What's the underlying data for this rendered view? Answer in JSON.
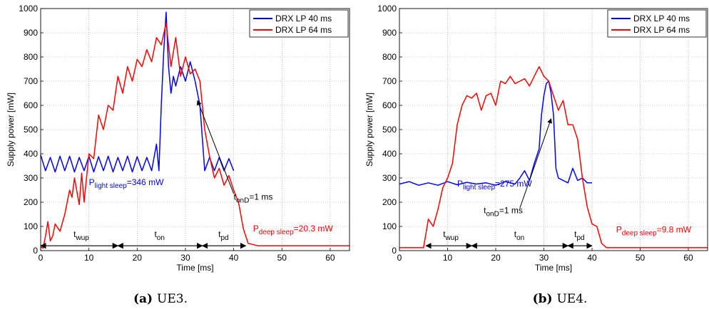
{
  "chart_data": [
    {
      "type": "line",
      "caption": {
        "letter": "(a)",
        "text": "UE3."
      },
      "xlabel": "Time [ms]",
      "ylabel": "Supply power [mW]",
      "xlim": [
        0,
        64
      ],
      "ylim": [
        0,
        1000
      ],
      "xticks": [
        0,
        10,
        20,
        30,
        40,
        50,
        60
      ],
      "yticks": [
        0,
        100,
        200,
        300,
        400,
        500,
        600,
        700,
        800,
        900,
        1000
      ],
      "grid": true,
      "legend_position": "top-right",
      "series": [
        {
          "name": "DRX LP 40 ms",
          "color": "#0000ff",
          "points": [
            [
              0,
              395
            ],
            [
              1,
              330
            ],
            [
              2,
              385
            ],
            [
              3,
              325
            ],
            [
              4,
              390
            ],
            [
              5,
              330
            ],
            [
              6,
              390
            ],
            [
              7,
              325
            ],
            [
              8,
              385
            ],
            [
              9,
              330
            ],
            [
              10,
              390
            ],
            [
              11,
              325
            ],
            [
              12,
              388
            ],
            [
              13,
              330
            ],
            [
              14,
              390
            ],
            [
              15,
              325
            ],
            [
              16,
              385
            ],
            [
              17,
              330
            ],
            [
              18,
              390
            ],
            [
              19,
              325
            ],
            [
              20,
              388
            ],
            [
              21,
              330
            ],
            [
              22,
              385
            ],
            [
              23,
              330
            ],
            [
              24,
              440
            ],
            [
              24.5,
              330
            ],
            [
              25,
              600
            ],
            [
              25.5,
              820
            ],
            [
              26,
              985
            ],
            [
              26.5,
              760
            ],
            [
              27,
              650
            ],
            [
              27.5,
              720
            ],
            [
              28,
              680
            ],
            [
              29,
              760
            ],
            [
              30,
              700
            ],
            [
              31,
              780
            ],
            [
              32,
              700
            ],
            [
              33,
              600
            ],
            [
              34,
              330
            ],
            [
              35,
              385
            ],
            [
              36,
              330
            ],
            [
              37,
              385
            ],
            [
              38,
              330
            ],
            [
              39,
              380
            ],
            [
              40,
              330
            ]
          ]
        },
        {
          "name": "DRX LP 64 ms",
          "color": "#ff0000",
          "points": [
            [
              0,
              15
            ],
            [
              0.5,
              10
            ],
            [
              1,
              60
            ],
            [
              1.5,
              120
            ],
            [
              2,
              40
            ],
            [
              2.5,
              60
            ],
            [
              3,
              110
            ],
            [
              4,
              80
            ],
            [
              5,
              150
            ],
            [
              6,
              250
            ],
            [
              6.5,
              220
            ],
            [
              7,
              300
            ],
            [
              8,
              190
            ],
            [
              8.5,
              320
            ],
            [
              9,
              200
            ],
            [
              10,
              400
            ],
            [
              11,
              380
            ],
            [
              12,
              560
            ],
            [
              13,
              500
            ],
            [
              14,
              600
            ],
            [
              15,
              580
            ],
            [
              16,
              720
            ],
            [
              17,
              650
            ],
            [
              18,
              760
            ],
            [
              19,
              700
            ],
            [
              20,
              790
            ],
            [
              21,
              760
            ],
            [
              22,
              830
            ],
            [
              23,
              780
            ],
            [
              24,
              880
            ],
            [
              25,
              850
            ],
            [
              26,
              940
            ],
            [
              27,
              760
            ],
            [
              28,
              880
            ],
            [
              29,
              720
            ],
            [
              30,
              800
            ],
            [
              31,
              730
            ],
            [
              32,
              750
            ],
            [
              33,
              700
            ],
            [
              34,
              500
            ],
            [
              35,
              390
            ],
            [
              36,
              300
            ],
            [
              37,
              340
            ],
            [
              38,
              270
            ],
            [
              39,
              310
            ],
            [
              40,
              250
            ],
            [
              41,
              200
            ],
            [
              42,
              90
            ],
            [
              43,
              30
            ],
            [
              45,
              20
            ],
            [
              50,
              20
            ],
            [
              55,
              20
            ],
            [
              60,
              20
            ],
            [
              64,
              20
            ]
          ]
        }
      ],
      "annotations": {
        "light_sleep": {
          "base": "P",
          "sub": "light sleep",
          "value": "=346 mW"
        },
        "deep_sleep": {
          "base": "P",
          "sub": "deep sleep",
          "value": "=20.3 mW"
        },
        "t_onD": {
          "base": "t",
          "sub": "onD",
          "value": "=1 ms"
        },
        "t_wup": {
          "base": "t",
          "sub": "wup"
        },
        "t_on": {
          "base": "t",
          "sub": "on"
        },
        "t_pd": {
          "base": "t",
          "sub": "pd"
        }
      }
    },
    {
      "type": "line",
      "caption": {
        "letter": "(b)",
        "text": "UE4."
      },
      "xlabel": "Time [ms]",
      "ylabel": "Supply power [mW]",
      "xlim": [
        0,
        64
      ],
      "ylim": [
        0,
        1000
      ],
      "xticks": [
        0,
        10,
        20,
        30,
        40,
        50,
        60
      ],
      "yticks": [
        0,
        100,
        200,
        300,
        400,
        500,
        600,
        700,
        800,
        900,
        1000
      ],
      "grid": true,
      "legend_position": "top-right",
      "series": [
        {
          "name": "DRX LP 40 ms",
          "color": "#0000ff",
          "points": [
            [
              0,
              275
            ],
            [
              2,
              285
            ],
            [
              4,
              270
            ],
            [
              6,
              280
            ],
            [
              8,
              270
            ],
            [
              10,
              285
            ],
            [
              12,
              272
            ],
            [
              14,
              282
            ],
            [
              16,
              275
            ],
            [
              18,
              280
            ],
            [
              20,
              270
            ],
            [
              22,
              285
            ],
            [
              24,
              275
            ],
            [
              25,
              300
            ],
            [
              26,
              330
            ],
            [
              27,
              290
            ],
            [
              28,
              360
            ],
            [
              29,
              420
            ],
            [
              29.5,
              560
            ],
            [
              30,
              640
            ],
            [
              30.5,
              690
            ],
            [
              31,
              700
            ],
            [
              31.5,
              650
            ],
            [
              32,
              560
            ],
            [
              32.5,
              340
            ],
            [
              33,
              300
            ],
            [
              34,
              290
            ],
            [
              35,
              280
            ],
            [
              36,
              340
            ],
            [
              37,
              290
            ],
            [
              38,
              300
            ],
            [
              39,
              280
            ],
            [
              40,
              280
            ]
          ]
        },
        {
          "name": "DRX LP 64 ms",
          "color": "#ff0000",
          "points": [
            [
              0,
              12
            ],
            [
              5,
              12
            ],
            [
              5.5,
              70
            ],
            [
              6,
              130
            ],
            [
              7,
              100
            ],
            [
              8,
              170
            ],
            [
              9,
              260
            ],
            [
              10,
              300
            ],
            [
              11,
              360
            ],
            [
              12,
              520
            ],
            [
              13,
              600
            ],
            [
              14,
              640
            ],
            [
              15,
              630
            ],
            [
              16,
              650
            ],
            [
              17,
              580
            ],
            [
              18,
              640
            ],
            [
              19,
              650
            ],
            [
              20,
              600
            ],
            [
              21,
              700
            ],
            [
              22,
              690
            ],
            [
              23,
              720
            ],
            [
              24,
              690
            ],
            [
              25,
              700
            ],
            [
              26,
              710
            ],
            [
              27,
              680
            ],
            [
              28,
              720
            ],
            [
              29,
              760
            ],
            [
              30,
              720
            ],
            [
              31,
              700
            ],
            [
              32,
              640
            ],
            [
              33,
              580
            ],
            [
              34,
              620
            ],
            [
              35,
              520
            ],
            [
              36,
              520
            ],
            [
              37,
              460
            ],
            [
              38,
              300
            ],
            [
              39,
              180
            ],
            [
              40,
              110
            ],
            [
              41,
              100
            ],
            [
              42,
              30
            ],
            [
              43,
              12
            ],
            [
              50,
              12
            ],
            [
              60,
              12
            ],
            [
              64,
              12
            ]
          ]
        }
      ],
      "annotations": {
        "light_sleep": {
          "base": "P",
          "sub": "light sleep",
          "value": "=275 mW"
        },
        "deep_sleep": {
          "base": "P",
          "sub": "deep sleep",
          "value": "=9.8 mW"
        },
        "t_onD": {
          "base": "t",
          "sub": "onD",
          "value": "=1 ms"
        },
        "t_wup": {
          "base": "t",
          "sub": "wup"
        },
        "t_on": {
          "base": "t",
          "sub": "on"
        },
        "t_pd": {
          "base": "t",
          "sub": "pd"
        }
      }
    }
  ]
}
